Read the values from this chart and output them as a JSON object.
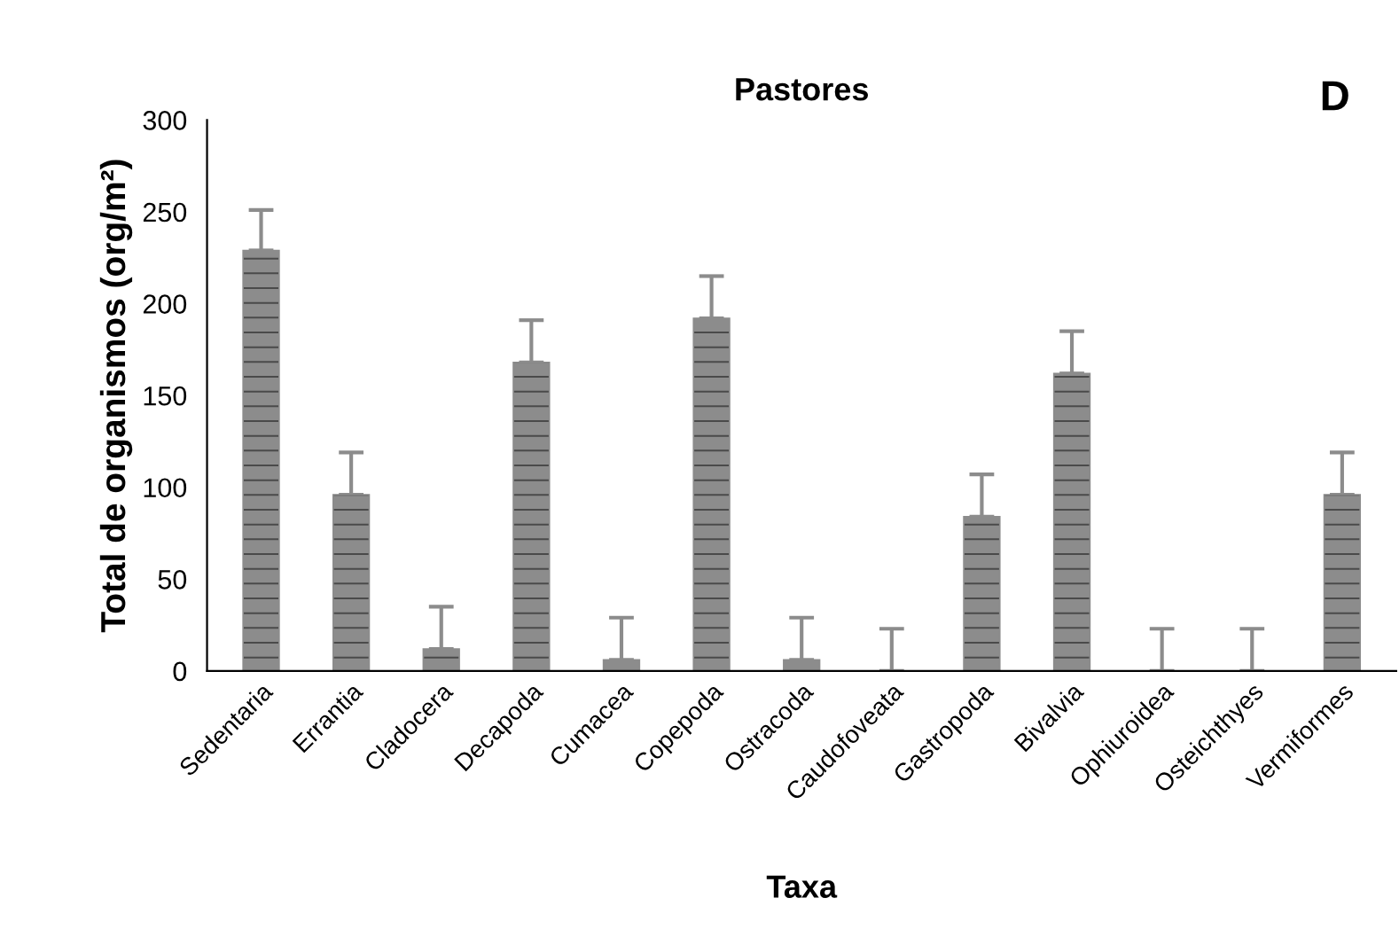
{
  "chart_data": {
    "type": "bar",
    "title": "Pastores",
    "xlabel": "Taxa",
    "ylabel": "Total de organismos (org/m²)",
    "annotations": [
      "D"
    ],
    "categories": [
      "Sedentaria",
      "Errantia",
      "Cladocera",
      "Decapoda",
      "Cumacea",
      "Copepoda",
      "Ostracoda",
      "Caudofoveata",
      "Gastropoda",
      "Bivalvia",
      "Ophiuroidea",
      "Osteichthyes",
      "Vermiformes"
    ],
    "values": [
      229,
      96,
      12,
      168,
      6,
      192,
      6,
      0,
      84,
      162,
      0,
      0,
      96
    ],
    "errors": [
      [
        229,
        251
      ],
      [
        96,
        119
      ],
      [
        12,
        35
      ],
      [
        168,
        191
      ],
      [
        6,
        29
      ],
      [
        192,
        215
      ],
      [
        6,
        29
      ],
      [
        0,
        23
      ],
      [
        84,
        107
      ],
      [
        162,
        185
      ],
      [
        0,
        23
      ],
      [
        0,
        23
      ],
      [
        96,
        119
      ]
    ],
    "color": "#8c8c8c",
    "ylim": [
      0,
      300
    ],
    "yticks": [
      0,
      50,
      100,
      150,
      200,
      250,
      300
    ],
    "grid": false,
    "legend": false
  }
}
